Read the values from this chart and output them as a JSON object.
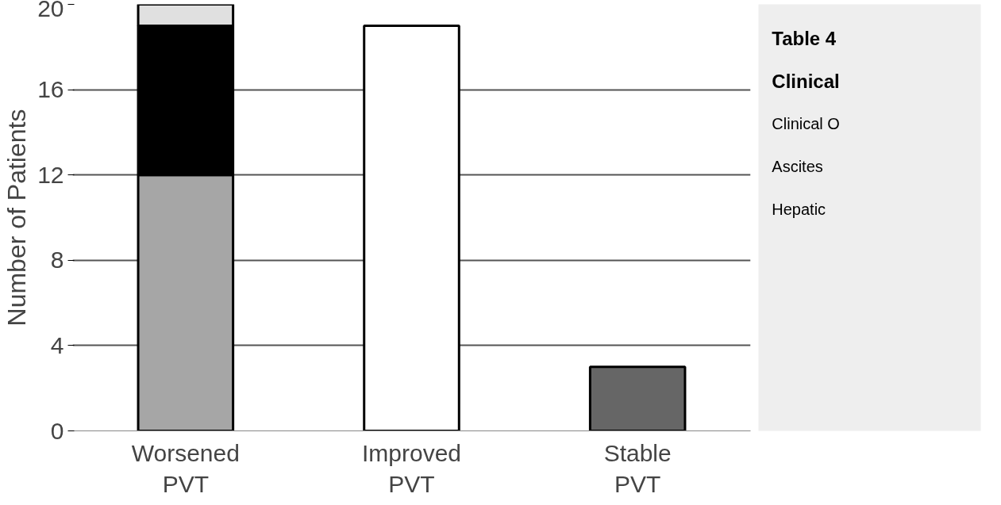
{
  "chart_data": {
    "type": "bar",
    "ylabel": "Number of Patients",
    "categories": [
      "Worsened\nPVT",
      "Improved\nPVT",
      "Stable\nPVT"
    ],
    "stacked": true,
    "series": [
      {
        "color": "#a6a6a6",
        "values": [
          12,
          null,
          null
        ]
      },
      {
        "color": "#000000",
        "values": [
          7,
          null,
          null
        ]
      },
      {
        "color": "#e0e0e0",
        "values": [
          1,
          null,
          null
        ]
      },
      {
        "color": "#ffffff",
        "values": [
          null,
          19,
          null
        ]
      },
      {
        "color": "#666666",
        "values": [
          null,
          null,
          3
        ]
      }
    ],
    "ylim": [
      0,
      20
    ],
    "yticks": [
      0,
      4,
      8,
      12,
      16,
      20
    ],
    "grid": "y",
    "annotations": [
      "Table 4",
      "Clinical",
      "Clinical O",
      "Ascites",
      "Hepatic"
    ]
  }
}
